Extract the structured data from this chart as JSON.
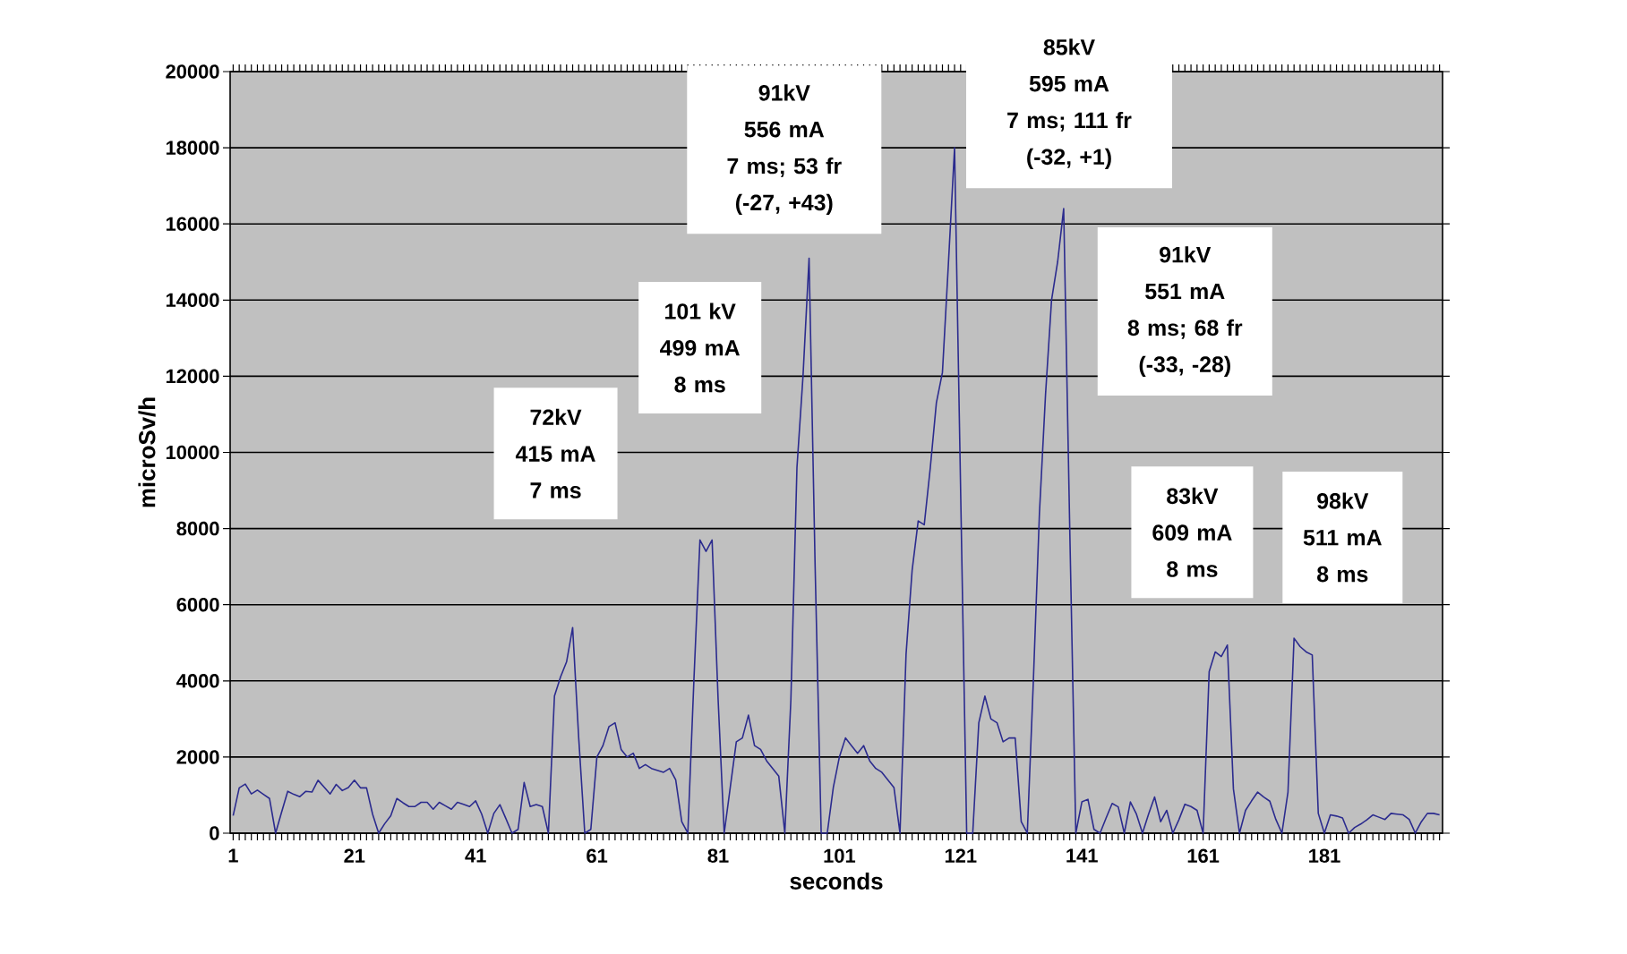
{
  "chart_data": {
    "type": "line",
    "xlabel": "seconds",
    "ylabel": "microSv/h",
    "color": "#2b2b8e",
    "categories": [
      "1",
      null,
      null,
      null,
      null,
      null,
      null,
      null,
      null,
      null,
      null,
      null,
      null,
      null,
      null,
      null,
      null,
      null,
      null,
      null,
      "21",
      null,
      null,
      null,
      null,
      null,
      null,
      null,
      null,
      null,
      null,
      null,
      null,
      null,
      null,
      null,
      null,
      null,
      null,
      null,
      "41",
      null,
      null,
      null,
      null,
      null,
      null,
      null,
      null,
      null,
      null,
      null,
      null,
      null,
      null,
      null,
      null,
      null,
      null,
      null,
      "61",
      null,
      null,
      null,
      null,
      null,
      null,
      null,
      null,
      null,
      null,
      null,
      null,
      null,
      null,
      null,
      null,
      null,
      null,
      null,
      "81",
      null,
      null,
      null,
      null,
      null,
      null,
      null,
      null,
      null,
      null,
      null,
      null,
      null,
      null,
      null,
      null,
      null,
      null,
      null,
      "101",
      null,
      null,
      null,
      null,
      null,
      null,
      null,
      null,
      null,
      null,
      null,
      null,
      null,
      null,
      null,
      null,
      null,
      null,
      null,
      "121",
      null,
      null,
      null,
      null,
      null,
      null,
      null,
      null,
      null,
      null,
      null,
      null,
      null,
      null,
      null,
      null,
      null,
      null,
      null,
      "141",
      null,
      null,
      null,
      null,
      null,
      null,
      null,
      null,
      null,
      null,
      null,
      null,
      null,
      null,
      null,
      null,
      null,
      null,
      null,
      "161",
      null,
      null,
      null,
      null,
      null,
      null,
      null,
      null,
      null,
      null,
      null,
      null,
      null,
      null,
      null,
      null,
      null,
      null,
      null,
      "181",
      null,
      null,
      null,
      null,
      null,
      null,
      null,
      null,
      null,
      null,
      null,
      null,
      null,
      null,
      null,
      null,
      null,
      null,
      null
    ],
    "values": [
      460,
      1190,
      1290,
      1030,
      1130,
      1020,
      910,
      0,
      560,
      1100,
      1020,
      960,
      1100,
      1080,
      1390,
      1210,
      1030,
      1280,
      1120,
      1200,
      1390,
      1190,
      1190,
      500,
      0,
      250,
      460,
      910,
      800,
      700,
      700,
      810,
      810,
      630,
      810,
      720,
      630,
      810,
      760,
      700,
      850,
      500,
      0,
      520,
      750,
      380,
      0,
      100,
      1330,
      700,
      750,
      700,
      0,
      3600,
      4100,
      4500,
      5400,
      2500,
      0,
      100,
      2000,
      2300,
      2800,
      2900,
      2200,
      2000,
      2100,
      1700,
      1800,
      1700,
      1650,
      1600,
      1700,
      1400,
      300,
      0,
      4000,
      7700,
      7400,
      7700,
      3500,
      0,
      1200,
      2400,
      2500,
      3100,
      2300,
      2200,
      1900,
      1700,
      1500,
      0,
      3500,
      9600,
      12000,
      15100,
      7000,
      0,
      0,
      1200,
      2000,
      2500,
      2300,
      2100,
      2300,
      1900,
      1700,
      1600,
      1400,
      1200,
      0,
      4700,
      6900,
      8200,
      8100,
      9600,
      11300,
      12100,
      15000,
      18000,
      9000,
      0,
      0,
      2900,
      3600,
      3000,
      2900,
      2400,
      2500,
      2500,
      300,
      0,
      4000,
      8400,
      11500,
      14000,
      15000,
      16400,
      8000,
      0,
      820,
      890,
      100,
      0,
      400,
      780,
      690,
      0,
      820,
      500,
      0,
      500,
      950,
      300,
      600,
      0,
      350,
      760,
      700,
      600,
      0,
      4240,
      4760,
      4640,
      4940,
      1160,
      0,
      600,
      850,
      1080,
      950,
      840,
      360,
      0,
      1080,
      5120,
      4900,
      4760,
      4680,
      520,
      0,
      480,
      450,
      400,
      0,
      150,
      240,
      350,
      480,
      420,
      360,
      520,
      500,
      480,
      360,
      0,
      300,
      520,
      520,
      480
    ],
    "ylim": [
      0,
      20000
    ],
    "yticks": [
      0,
      2000,
      4000,
      6000,
      8000,
      10000,
      12000,
      14000,
      16000,
      18000,
      20000
    ],
    "grid": "y",
    "annotations": [
      "72kV\n415 mA\n7 ms",
      "101 kV\n499 mA\n8 ms",
      "91kV\n556 mA\n7 ms; 53 fr\n(-27, +43)",
      "85kV\n595 mA\n7 ms; 111 fr\n(-32, +1)",
      "91kV\n551 mA\n8 ms; 68 fr\n(-33, -28)",
      "83kV\n609 mA\n8 ms",
      "98kV\n511 mA\n8 ms"
    ]
  }
}
